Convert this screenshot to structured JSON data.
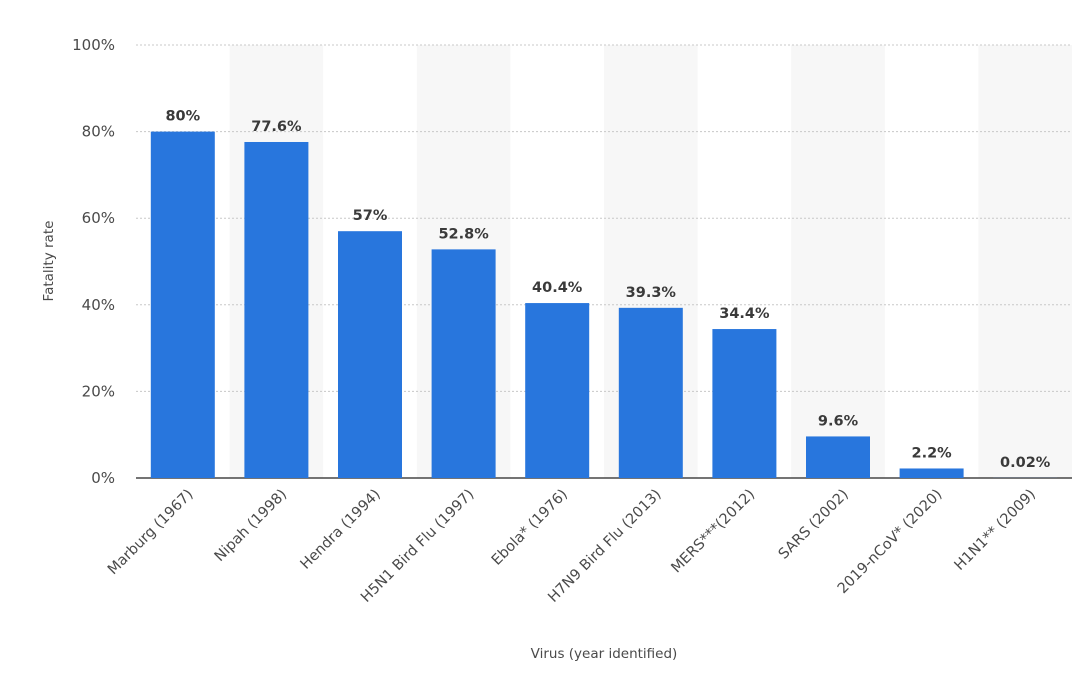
{
  "chart_data": {
    "type": "bar",
    "categories": [
      "Marburg (1967)",
      "Nipah (1998)",
      "Hendra (1994)",
      "H5N1 Bird Flu (1997)",
      "Ebola* (1976)",
      "H7N9 Bird Flu (2013)",
      "MERS***(2012)",
      "SARS (2002)",
      "2019-nCoV* (2020)",
      "H1N1** (2009)"
    ],
    "values": [
      80,
      77.6,
      57,
      52.8,
      40.4,
      39.3,
      34.4,
      9.6,
      2.2,
      0.02
    ],
    "value_labels": [
      "80%",
      "77.6%",
      "57%",
      "52.8%",
      "40.4%",
      "39.3%",
      "34.4%",
      "9.6%",
      "2.2%",
      "0.02%"
    ],
    "title": "",
    "xlabel": "Virus (year identified)",
    "ylabel": "Fatality rate",
    "ylim": [
      0,
      100
    ],
    "yticks": [
      0,
      20,
      40,
      60,
      80,
      100
    ],
    "ytick_labels": [
      "0%",
      "20%",
      "40%",
      "60%",
      "80%",
      "100%"
    ],
    "grid": true,
    "legend": "none",
    "bar_color": "#2876dd",
    "band_color": "#f7f7f7",
    "grid_color": "#c8c8c8"
  }
}
